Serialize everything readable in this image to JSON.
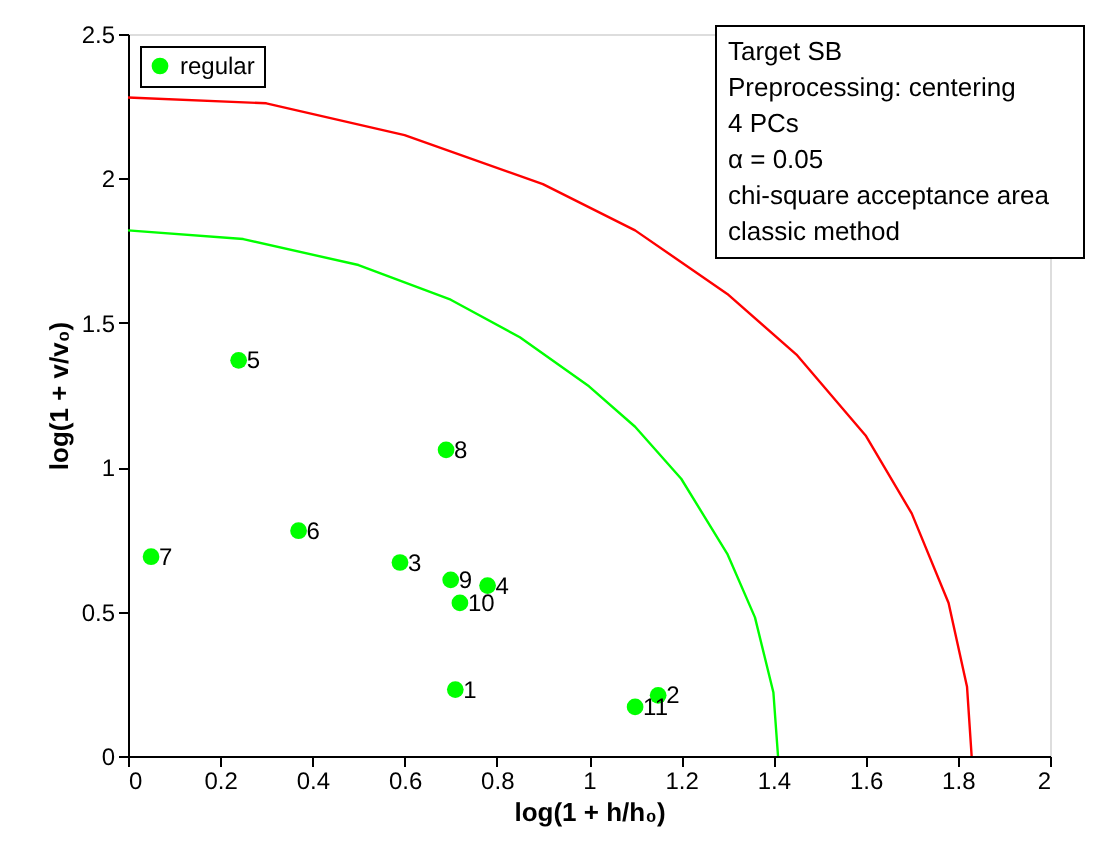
{
  "chart_data": {
    "type": "scatter",
    "xlabel": "log(1 + h/h₀)",
    "ylabel": "log(1 + v/v₀)",
    "xlim": [
      0,
      2
    ],
    "ylim": [
      0,
      2.5
    ],
    "xticks": [
      0,
      0.2,
      0.4,
      0.6,
      0.8,
      1,
      1.2,
      1.4,
      1.6,
      1.8,
      2
    ],
    "yticks": [
      0,
      0.5,
      1,
      1.5,
      2,
      2.5
    ],
    "grid": false,
    "legend": "top left",
    "annotations": [
      "Target SB",
      "Preprocessing: centering",
      "4 PCs",
      "α = 0.05",
      "chi-square acceptance area",
      "classic method",
      {
        "text": "1",
        "x": 0.71,
        "y": 0.23
      },
      {
        "text": "2",
        "x": 1.15,
        "y": 0.21
      },
      {
        "text": "3",
        "x": 0.59,
        "y": 0.67
      },
      {
        "text": "4",
        "x": 0.78,
        "y": 0.59
      },
      {
        "text": "5",
        "x": 0.24,
        "y": 1.37
      },
      {
        "text": "6",
        "x": 0.37,
        "y": 0.78
      },
      {
        "text": "7",
        "x": 0.05,
        "y": 0.69
      },
      {
        "text": "8",
        "x": 0.69,
        "y": 1.06
      },
      {
        "text": "9",
        "x": 0.7,
        "y": 0.61
      },
      {
        "text": "10",
        "x": 0.72,
        "y": 0.53
      },
      {
        "text": "11",
        "x": 1.1,
        "y": 0.17
      }
    ],
    "series": [
      {
        "name": "regular",
        "color": "#00ff00",
        "marker": "circle",
        "x": [
          0.71,
          1.15,
          0.59,
          0.78,
          0.24,
          0.37,
          0.05,
          0.69,
          0.7,
          0.72,
          1.1
        ],
        "values": [
          0.23,
          0.21,
          0.67,
          0.59,
          1.37,
          0.78,
          0.69,
          1.06,
          0.61,
          0.53,
          0.17
        ]
      },
      {
        "type": "line",
        "color": "#ff0000",
        "line_style": "solid",
        "x": [
          0,
          0.3,
          0.6,
          0.9,
          1.1,
          1.3,
          1.45,
          1.6,
          1.7,
          1.78,
          1.82,
          1.83
        ],
        "values": [
          2.28,
          2.26,
          2.15,
          1.98,
          1.82,
          1.6,
          1.39,
          1.11,
          0.84,
          0.53,
          0.24,
          0
        ]
      },
      {
        "type": "line",
        "color": "#00ff00",
        "line_style": "solid",
        "x": [
          0,
          0.25,
          0.5,
          0.7,
          0.85,
          1.0,
          1.1,
          1.2,
          1.3,
          1.36,
          1.4,
          1.41
        ],
        "values": [
          1.82,
          1.79,
          1.7,
          1.58,
          1.45,
          1.28,
          1.14,
          0.96,
          0.7,
          0.48,
          0.22,
          0
        ]
      }
    ]
  }
}
